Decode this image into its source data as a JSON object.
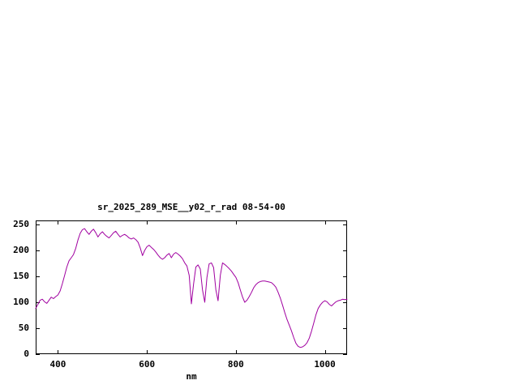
{
  "window": {
    "background": "#ffffff",
    "border_color": "#000000",
    "text_color": "#000000"
  },
  "chart_data": {
    "type": "line",
    "title": "sr_2025_289_MSE__y02_r_rad 08-54-00",
    "xlabel": "nm",
    "ylabel": "",
    "grid": false,
    "legend": "none",
    "line_color": "#a000a0",
    "xlim": [
      350,
      1050
    ],
    "ylim": [
      0,
      257.8
    ],
    "xticks": [
      400,
      600,
      800,
      1000
    ],
    "yticks": [
      0,
      50,
      100,
      150,
      200,
      250
    ],
    "xtick_labels": [
      "400",
      "600",
      "800",
      "1000"
    ],
    "ytick_labels": [
      "0",
      "50",
      "100",
      "150",
      "200",
      "250"
    ],
    "x": [
      350,
      355,
      360,
      365,
      370,
      375,
      380,
      385,
      390,
      395,
      400,
      405,
      410,
      415,
      420,
      425,
      430,
      435,
      440,
      445,
      450,
      455,
      460,
      465,
      470,
      475,
      480,
      485,
      490,
      495,
      500,
      505,
      510,
      515,
      520,
      525,
      530,
      535,
      540,
      545,
      550,
      555,
      560,
      565,
      570,
      575,
      580,
      585,
      590,
      595,
      600,
      605,
      610,
      615,
      620,
      625,
      630,
      635,
      640,
      645,
      650,
      655,
      660,
      665,
      670,
      675,
      680,
      685,
      690,
      695,
      700,
      705,
      710,
      715,
      720,
      725,
      730,
      735,
      740,
      745,
      750,
      755,
      760,
      765,
      770,
      775,
      780,
      785,
      790,
      795,
      800,
      805,
      810,
      815,
      820,
      825,
      830,
      835,
      840,
      845,
      850,
      855,
      860,
      865,
      870,
      875,
      880,
      885,
      890,
      895,
      900,
      905,
      910,
      915,
      920,
      925,
      930,
      935,
      940,
      945,
      950,
      955,
      960,
      965,
      970,
      975,
      980,
      985,
      990,
      995,
      1000,
      1005,
      1010,
      1015,
      1020,
      1025,
      1030,
      1035,
      1040,
      1045,
      1050
    ],
    "y": [
      88,
      96,
      104,
      106,
      101,
      98,
      104,
      110,
      107,
      111,
      114,
      122,
      136,
      152,
      168,
      180,
      186,
      192,
      204,
      220,
      233,
      240,
      242,
      236,
      231,
      237,
      241,
      234,
      226,
      232,
      236,
      231,
      227,
      224,
      229,
      234,
      237,
      231,
      226,
      229,
      231,
      228,
      224,
      222,
      224,
      221,
      216,
      205,
      190,
      200,
      207,
      210,
      206,
      202,
      197,
      191,
      186,
      183,
      186,
      191,
      194,
      186,
      193,
      196,
      193,
      189,
      184,
      176,
      170,
      152,
      97,
      135,
      168,
      172,
      164,
      124,
      100,
      148,
      174,
      176,
      167,
      124,
      103,
      152,
      176,
      173,
      169,
      165,
      160,
      154,
      148,
      138,
      124,
      110,
      100,
      104,
      111,
      119,
      128,
      134,
      138,
      140,
      141,
      141,
      140,
      139,
      138,
      134,
      129,
      119,
      108,
      94,
      80,
      67,
      56,
      45,
      32,
      21,
      15,
      13,
      14,
      17,
      22,
      31,
      44,
      60,
      76,
      88,
      95,
      100,
      103,
      101,
      96,
      93,
      97,
      101,
      103,
      104,
      106,
      105,
      106
    ]
  }
}
